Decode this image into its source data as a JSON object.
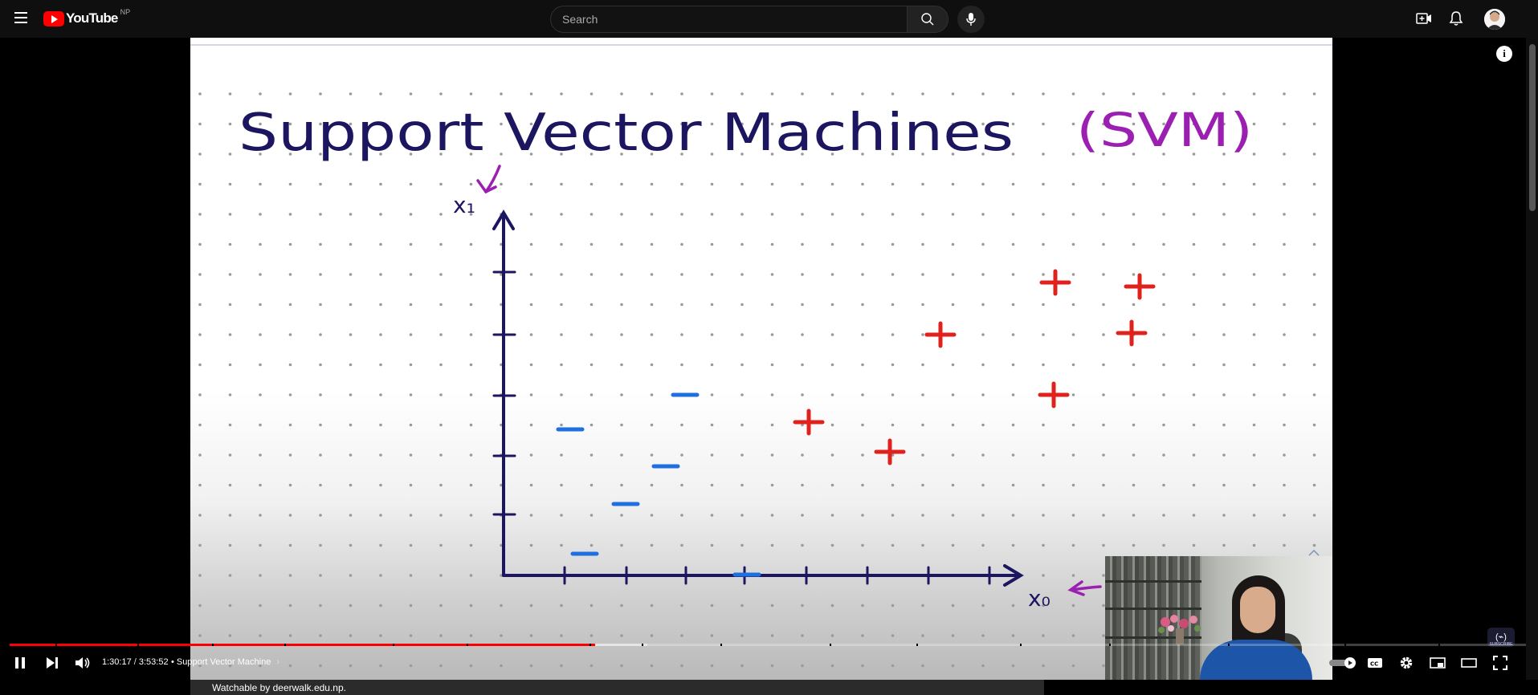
{
  "topbar": {
    "logo_text": "YouTube",
    "country_code": "NP",
    "search_placeholder": "Search",
    "icons": [
      "menu-icon",
      "search-icon",
      "mic-icon",
      "create-icon",
      "bell-icon",
      "avatar"
    ]
  },
  "video": {
    "board": {
      "title": "Support Vector Machines",
      "title_abbrev": "(SVM)",
      "y_axis_label": "x₁",
      "x_axis_label": "x₀",
      "ink_colors": {
        "dark": "#1c1560",
        "purple": "#9b1fb0",
        "red": "#e0221d",
        "blue": "#1f6fe0"
      }
    },
    "channel_badge": "(⌁)",
    "channel_badge_caption": "SUBSCRIBE"
  },
  "controls": {
    "current_time": "1:30:17",
    "separator": " / ",
    "duration": "3:53:52",
    "chapter_prefix": "•",
    "chapter_title": "Support Vector Machine",
    "progress": 0.3855,
    "buffered": 0.42
  },
  "footer": {
    "notice": "Watchable by deerwalk.edu.np."
  }
}
